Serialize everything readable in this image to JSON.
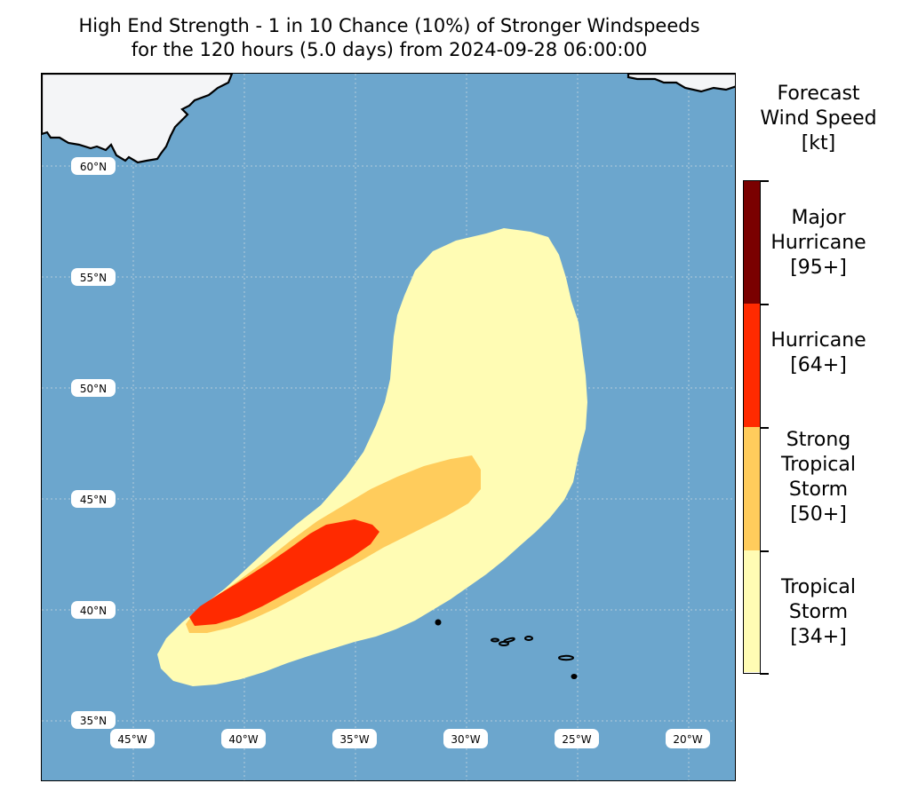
{
  "title": {
    "line1": "High End Strength - 1 in 10 Chance (10%) of Stronger Windspeeds",
    "line2": "for the 120 hours (5.0 days) from 2024-09-28 06:00:00"
  },
  "map": {
    "ocean_color": "#6ca6cd",
    "land_color": "#f4f5f7",
    "grid_color": "#c8d6e0",
    "lat_labels": [
      "60°N",
      "55°N",
      "50°N",
      "45°N",
      "40°N",
      "35°N"
    ],
    "lon_labels": [
      "45°W",
      "40°W",
      "35°W",
      "30°W",
      "25°W",
      "20°W"
    ]
  },
  "legend": {
    "title_line1": "Forecast",
    "title_line2": "Wind Speed",
    "title_line3": "[kt]",
    "categories": [
      {
        "line1": "Major",
        "line2": "Hurricane",
        "line3": "[95+]",
        "color": "#7a0000"
      },
      {
        "line1": "Hurricane",
        "line2": "[64+]",
        "line3": "",
        "color": "#ff2a00"
      },
      {
        "line1": "Strong",
        "line2": "Tropical",
        "line3": "Storm",
        "line4": "[50+]",
        "color": "#ffcc5c"
      },
      {
        "line1": "Tropical",
        "line2": "Storm",
        "line3": "[34+]",
        "color": "#fffcb4"
      }
    ]
  }
}
